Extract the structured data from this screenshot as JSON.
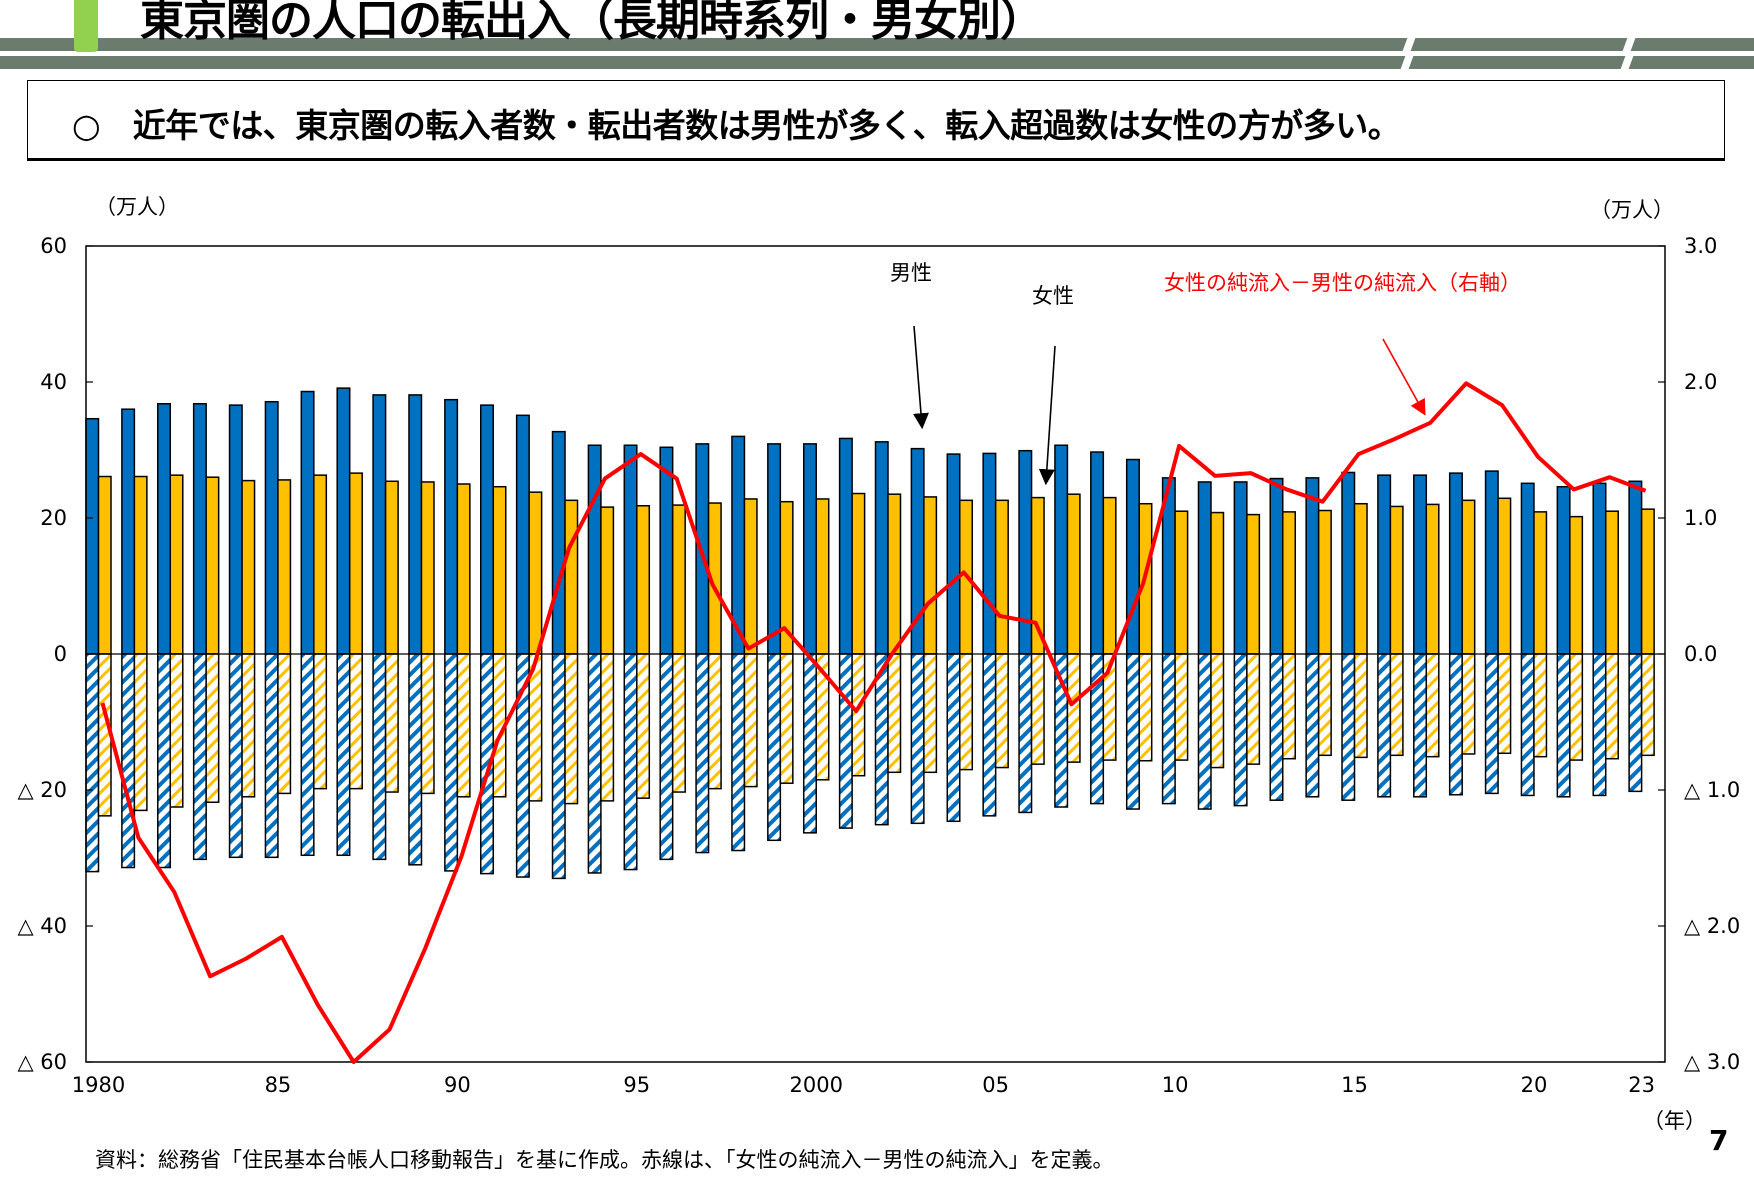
{
  "header": {
    "title": "東京圏の人口の転出入（長期時系列・男女別）",
    "message": "○　近年では、東京圏の転入者数・転出者数は男性が多く、転入超過数は女性の方が多い。"
  },
  "footer": {
    "source": "資料：総務省「住民基本台帳人口移動報告」を基に作成。赤線は、「女性の純流入－男性の純流入」を定義。",
    "page_number": "7"
  },
  "colors": {
    "male": "#0070c0",
    "female": "#ffc000",
    "line": "#ff0000",
    "band": "#6b7b6e",
    "accent": "#92d050"
  },
  "chart_data": {
    "type": "bar",
    "left_unit": "（万人）",
    "right_unit": "（万人）",
    "x_unit": "（年）",
    "ylim": [
      -60,
      60
    ],
    "y2lim": [
      -3.0,
      3.0
    ],
    "yticks": [
      "60",
      "40",
      "20",
      "0",
      "△ 20",
      "△ 40",
      "△ 60"
    ],
    "y2ticks": [
      "3.0",
      "2.0",
      "1.0",
      "0.0",
      "△ 1.0",
      "△ 2.0",
      "△ 3.0"
    ],
    "xtick_labels": {
      "1980": "1980",
      "1985": "85",
      "1990": "90",
      "1995": "95",
      "2000": "2000",
      "2005": "05",
      "2010": "10",
      "2015": "15",
      "2020": "20",
      "2023": "23"
    },
    "annotations": {
      "male": "男性",
      "female": "女性",
      "line": "女性の純流入－男性の純流入（右軸）"
    },
    "years": [
      1980,
      1981,
      1982,
      1983,
      1984,
      1985,
      1986,
      1987,
      1988,
      1989,
      1990,
      1991,
      1992,
      1993,
      1994,
      1995,
      1996,
      1997,
      1998,
      1999,
      2000,
      2001,
      2002,
      2003,
      2004,
      2005,
      2006,
      2007,
      2008,
      2009,
      2010,
      2011,
      2012,
      2013,
      2014,
      2015,
      2016,
      2017,
      2018,
      2019,
      2020,
      2021,
      2022,
      2023
    ],
    "series": [
      {
        "name": "男性",
        "kind": "in",
        "values": [
          34.6,
          36.0,
          36.8,
          36.8,
          36.6,
          37.1,
          38.6,
          39.1,
          38.1,
          38.1,
          37.4,
          36.6,
          35.1,
          32.7,
          30.7,
          30.7,
          30.4,
          30.9,
          32.0,
          30.9,
          30.9,
          31.7,
          31.2,
          30.2,
          29.4,
          29.5,
          29.9,
          30.7,
          29.7,
          28.6,
          25.9,
          25.3,
          25.3,
          25.8,
          25.9,
          26.7,
          26.3,
          26.3,
          26.6,
          26.9,
          25.1,
          24.6,
          25.1,
          25.4
        ]
      },
      {
        "name": "女性",
        "kind": "in",
        "values": [
          26.1,
          26.1,
          26.3,
          26.0,
          25.5,
          25.6,
          26.3,
          26.6,
          25.4,
          25.3,
          25.0,
          24.6,
          23.8,
          22.6,
          21.6,
          21.8,
          21.9,
          22.2,
          22.8,
          22.4,
          22.8,
          23.6,
          23.5,
          23.1,
          22.6,
          22.6,
          23.0,
          23.5,
          23.0,
          22.1,
          21.0,
          20.8,
          20.5,
          20.9,
          21.1,
          22.1,
          21.7,
          22.0,
          22.6,
          22.9,
          20.9,
          20.2,
          21.0,
          21.3
        ]
      },
      {
        "kind": "out_male",
        "values": [
          -32.0,
          -31.4,
          -31.4,
          -30.2,
          -29.9,
          -29.9,
          -29.6,
          -29.6,
          -30.2,
          -31.0,
          -31.9,
          -32.3,
          -32.8,
          -33.0,
          -32.2,
          -31.7,
          -30.2,
          -29.2,
          -28.9,
          -27.4,
          -26.3,
          -25.6,
          -25.1,
          -24.9,
          -24.6,
          -23.8,
          -23.3,
          -22.5,
          -22.0,
          -22.8,
          -22.0,
          -22.8,
          -22.3,
          -21.5,
          -21.0,
          -21.5,
          -21.0,
          -21.0,
          -20.7,
          -20.5,
          -20.8,
          -21.0,
          -20.8,
          -20.2
        ]
      },
      {
        "kind": "out_female",
        "values": [
          -23.8,
          -23.0,
          -22.5,
          -21.8,
          -21.0,
          -20.5,
          -19.8,
          -19.8,
          -20.3,
          -20.5,
          -21.0,
          -21.0,
          -21.6,
          -22.0,
          -21.6,
          -21.2,
          -20.3,
          -19.8,
          -19.5,
          -19.0,
          -18.5,
          -17.9,
          -17.4,
          -17.4,
          -17.0,
          -16.7,
          -16.2,
          -15.9,
          -15.6,
          -15.7,
          -15.6,
          -16.7,
          -16.2,
          -15.4,
          -14.9,
          -15.2,
          -14.9,
          -15.1,
          -14.7,
          -14.6,
          -15.1,
          -15.6,
          -15.4,
          -14.9
        ]
      },
      {
        "name": "女性の純流入－男性の純流入（右軸）",
        "kind": "line",
        "axis": "right",
        "values": [
          -0.36,
          -1.35,
          -1.75,
          -2.37,
          -2.24,
          -2.08,
          -2.58,
          -3.0,
          -2.76,
          -2.16,
          -1.49,
          -0.64,
          -0.11,
          0.78,
          1.29,
          1.47,
          1.29,
          0.51,
          0.04,
          0.19,
          -0.11,
          -0.42,
          0.0,
          0.37,
          0.6,
          0.28,
          0.23,
          -0.37,
          -0.14,
          0.52,
          1.53,
          1.31,
          1.33,
          1.21,
          1.12,
          1.47,
          1.58,
          1.7,
          1.99,
          1.83,
          1.45,
          1.21,
          1.3,
          1.2
        ]
      }
    ]
  }
}
